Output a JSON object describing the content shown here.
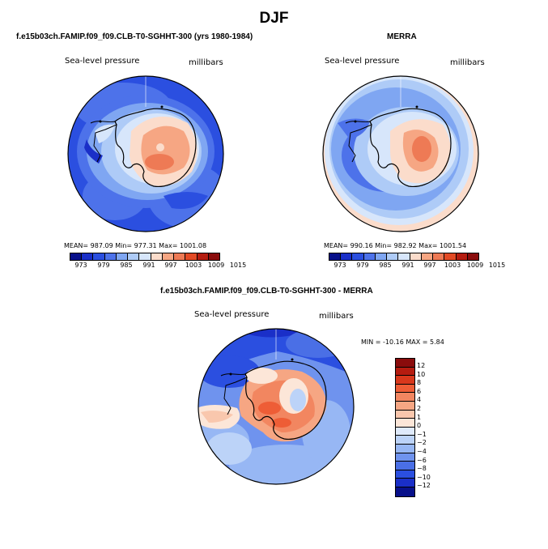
{
  "figure": {
    "title": "DJF",
    "colors": {
      "deep_blue": "#08108a",
      "mid_blue": "#2b4fe0",
      "light_blue": "#7fa6f2",
      "pale_blue": "#d7e6fb",
      "pale_red": "#fbdccb",
      "light_red": "#f6a683",
      "mid_red": "#ee5d36",
      "deep_red": "#8a0c0c"
    }
  },
  "panels": {
    "model": {
      "subtitle": "f.e15b03ch.FAMIP.f09_f09.CLB-T0-SGHHT-300 (yrs 1980-1984)",
      "variable": "Sea-level pressure",
      "units": "millibars",
      "stats": "MEAN= 987.09   Min= 977.31   Max= 1001.08",
      "colorbar_ticks": [
        "973",
        "979",
        "985",
        "991",
        "997",
        "1003",
        "1009",
        "1015"
      ]
    },
    "obs": {
      "subtitle": "MERRA",
      "variable": "Sea-level pressure",
      "units": "millibars",
      "stats": "MEAN= 990.16   Min= 982.92   Max= 1001.54",
      "colorbar_ticks": [
        "973",
        "979",
        "985",
        "991",
        "997",
        "1003",
        "1009",
        "1015"
      ]
    },
    "diff": {
      "subtitle": "f.e15b03ch.FAMIP.f09_f09.CLB-T0-SGHHT-300 - MERRA",
      "variable": "Sea-level pressure",
      "units": "millibars",
      "stats": "MIN = -10.16  MAX =    5.84",
      "colorbar_ticks": [
        "12",
        "10",
        "8",
        "6",
        "4",
        "2",
        "1",
        "0",
        "−1",
        "−2",
        "−4",
        "−6",
        "−8",
        "−10",
        "−12"
      ]
    }
  },
  "abs_colorbar_colors": [
    "#08108a",
    "#1a2fc8",
    "#2b4fe0",
    "#4d72ea",
    "#7fa6f2",
    "#aecbf7",
    "#d7e6fb",
    "#fbdccb",
    "#f6a683",
    "#ee7a55",
    "#e34a25",
    "#b51c10",
    "#8a0c0c"
  ],
  "diff_colorbar_colors": [
    "#8a0c0c",
    "#b51c10",
    "#d8381c",
    "#ee5d36",
    "#f28660",
    "#f6a683",
    "#f9c7ad",
    "#fce6d8",
    "#dfeafb",
    "#bcd3f8",
    "#97b7f4",
    "#6f93ee",
    "#4a6fe6",
    "#2b4fe0",
    "#1a2fc8",
    "#08108a"
  ]
}
